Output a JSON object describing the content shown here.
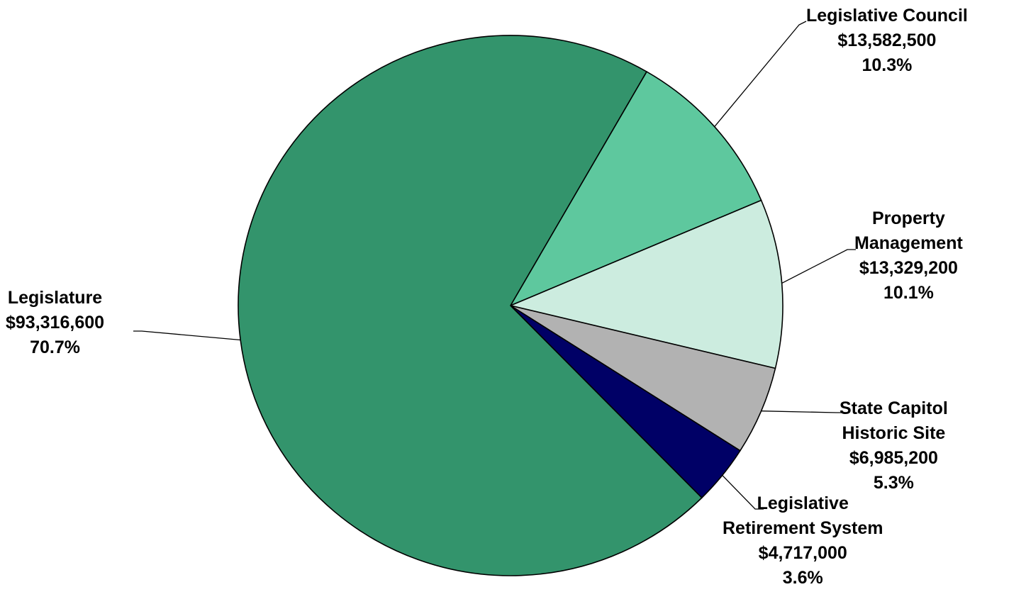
{
  "chart_data": {
    "type": "pie",
    "title": "",
    "start_angle_deg": 30,
    "direction": "clockwise",
    "slices": [
      {
        "key": "council",
        "name": "Legislative Council",
        "name_lines": [
          "Legislative Council"
        ],
        "value": 13582500,
        "value_label": "$13,582,500",
        "percent_label": "10.3%",
        "color": "#5ec89e"
      },
      {
        "key": "property",
        "name": "Property Management",
        "name_lines": [
          "Property",
          "Management"
        ],
        "value": 13329200,
        "value_label": "$13,329,200",
        "percent_label": "10.1%",
        "color": "#ccecdf"
      },
      {
        "key": "capitol",
        "name": "State Capitol Historic Site",
        "name_lines": [
          "State Capitol",
          "Historic Site"
        ],
        "value": 6985200,
        "value_label": "$6,985,200",
        "percent_label": "5.3%",
        "color": "#b2b2b2"
      },
      {
        "key": "retirement",
        "name": "Legislative Retirement System",
        "name_lines": [
          "Legislative",
          "Retirement System"
        ],
        "value": 4717000,
        "value_label": "$4,717,000",
        "percent_label": "3.6%",
        "color": "#000066"
      },
      {
        "key": "legislature",
        "name": "Legislature",
        "name_lines": [
          "Legislature"
        ],
        "value": 93316600,
        "value_label": "$93,316,600",
        "percent_label": "70.7%",
        "color": "#33946c"
      }
    ]
  }
}
